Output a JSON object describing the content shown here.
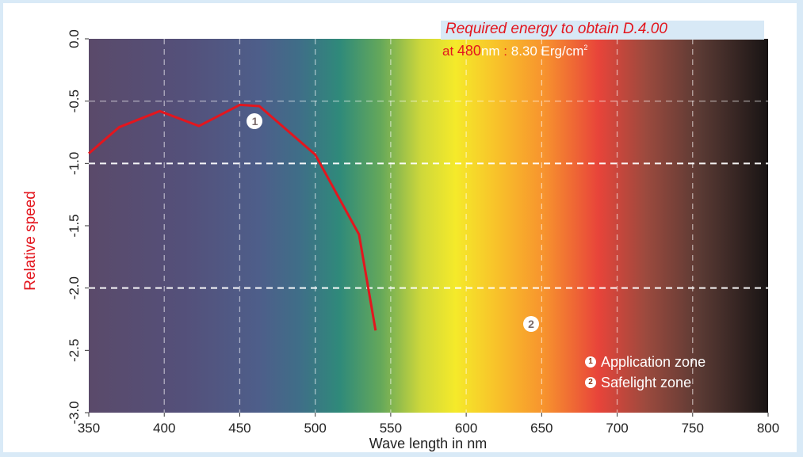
{
  "annotation": {
    "title": "Required energy to obtain D.4.00",
    "prefix": "at ",
    "wavelength": "480",
    "unit": "nm",
    "separator": " : ",
    "energy": "8.30 Erg/cm",
    "energy_exp": "2"
  },
  "zones": [
    {
      "marker": "1",
      "label": "Application zone",
      "wavelength": 460,
      "speed": -0.66
    },
    {
      "marker": "2",
      "label": "Safelight zone",
      "wavelength": 643,
      "speed": -2.29
    }
  ],
  "colors": {
    "curve": "#e3161e",
    "ylabel": "#e3161e",
    "background": "#d9eaf7"
  },
  "chart_data": {
    "type": "line",
    "xlabel": "Wave length in nm",
    "ylabel": "Relative speed",
    "xlim": [
      350,
      800
    ],
    "ylim": [
      -3.0,
      0.0
    ],
    "x_ticks": [
      350,
      400,
      450,
      500,
      550,
      600,
      650,
      700,
      750,
      800
    ],
    "y_ticks": [
      0.0,
      -0.5,
      -1.0,
      -1.5,
      -2.0,
      -2.5,
      -3.0
    ],
    "y_tick_labels": [
      "0.0",
      "-0.5",
      "-1.0",
      "-1.5",
      "-2.0",
      "-2.5",
      "-3.0"
    ],
    "grid": {
      "vertical": true,
      "horizontal": [
        -0.5,
        -1.0,
        -2.0
      ]
    },
    "background": "visible-spectrum-gradient",
    "series": [
      {
        "x": [
          350,
          370,
          397,
          423,
          450,
          463,
          500,
          529,
          540
        ],
        "y": [
          -0.92,
          -0.71,
          -0.58,
          -0.7,
          -0.53,
          -0.54,
          -0.93,
          -1.57,
          -2.34
        ]
      }
    ]
  }
}
